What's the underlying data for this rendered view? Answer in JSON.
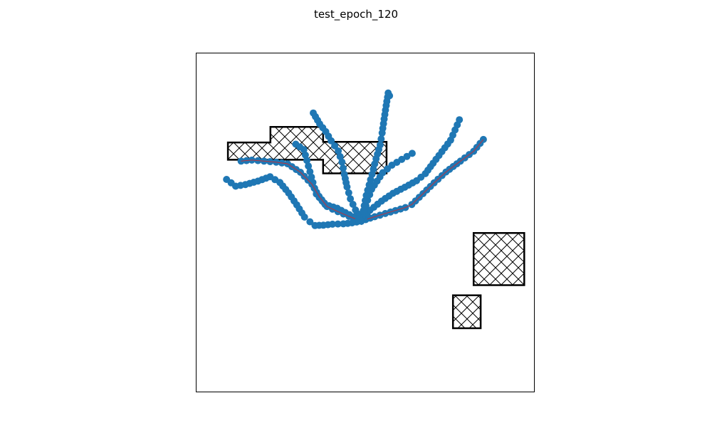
{
  "chart_data": {
    "type": "scatter",
    "title": "test_epoch_120",
    "xlabel": "",
    "ylabel": "",
    "xlim": [
      0,
      100
    ],
    "ylim": [
      0,
      100
    ],
    "grid": false,
    "ticks": false,
    "colors": {
      "path_point": "#1f77b4",
      "highlight_line": "#d62728",
      "obstacle_edge": "#000000",
      "obstacle_fill": "#ffffff"
    },
    "obstacles": [
      {
        "polygon": [
          [
            9.3,
            73.5
          ],
          [
            21.9,
            73.5
          ],
          [
            21.9,
            78.1
          ],
          [
            37.5,
            78.1
          ],
          [
            37.5,
            73.7
          ],
          [
            56.3,
            73.7
          ],
          [
            56.3,
            64.4
          ],
          [
            37.5,
            64.4
          ],
          [
            37.5,
            68.4
          ],
          [
            29.5,
            68.4
          ],
          [
            9.3,
            68.4
          ]
        ]
      },
      {
        "polygon": [
          [
            82.1,
            46.8
          ],
          [
            97.1,
            46.8
          ],
          [
            97.1,
            31.4
          ],
          [
            82.1,
            31.4
          ]
        ]
      },
      {
        "polygon": [
          [
            76.0,
            28.4
          ],
          [
            84.2,
            28.4
          ],
          [
            84.2,
            18.7
          ],
          [
            76.0,
            18.7
          ]
        ]
      }
    ],
    "series": [
      {
        "highlight": true,
        "x": [
          48.8,
          52.8,
          57.5,
          61.9,
          63.8,
          67.1,
          70.4,
          73.9,
          78.2,
          82.1,
          85.0
        ],
        "y": [
          50.3,
          51.6,
          53.0,
          54.3,
          55.2,
          58.4,
          61.6,
          64.8,
          68.0,
          70.9,
          74.4
        ]
      },
      {
        "highlight": false,
        "x": [
          48.8,
          51.4,
          54.8,
          58.2,
          61.7,
          65.2,
          67.8,
          70.1,
          72.7,
          75.3,
          77.9
        ],
        "y": [
          50.3,
          53.5,
          56.2,
          58.5,
          60.3,
          62.2,
          64.3,
          67.4,
          70.8,
          74.2,
          80.2
        ]
      },
      {
        "highlight": false,
        "x": [
          48.8,
          49.7,
          50.7,
          51.9,
          53.5,
          55.2,
          57.9,
          60.8,
          63.9
        ],
        "y": [
          50.3,
          53.3,
          56.5,
          59.7,
          62.1,
          64.6,
          66.8,
          68.5,
          70.3
        ]
      },
      {
        "highlight": false,
        "x": [
          48.8,
          50.3,
          52.0,
          53.2,
          54.4,
          55.0,
          55.6,
          56.2,
          56.8,
          57.2
        ],
        "y": [
          50.3,
          57.9,
          64.1,
          68.7,
          72.8,
          76.3,
          80.4,
          84.4,
          88.1,
          87.3
        ]
      },
      {
        "highlight": false,
        "x": [
          48.8,
          47.1,
          45.6,
          44.6,
          43.8,
          43.1,
          42.0,
          39.9,
          38.3,
          36.5,
          34.6
        ],
        "y": [
          50.3,
          53.6,
          56.9,
          60.4,
          64.1,
          67.7,
          71.0,
          74.0,
          76.7,
          79.0,
          82.2
        ]
      },
      {
        "highlight": false,
        "x": [
          48.8,
          45.3,
          41.7,
          38.1,
          35.5,
          34.5,
          33.6,
          32.7,
          31.8,
          29.4
        ],
        "y": [
          50.3,
          52.2,
          54.1,
          55.2,
          58.3,
          61.7,
          64.9,
          68.2,
          71.4,
          73.0
        ]
      },
      {
        "highlight": true,
        "x": [
          48.8,
          45.2,
          41.9,
          38.7,
          36.3,
          34.2,
          30.8,
          27.0,
          23.6,
          20.0,
          16.4,
          13.2
        ],
        "y": [
          50.3,
          51.7,
          53.1,
          54.6,
          57.6,
          61.2,
          64.7,
          67.2,
          67.7,
          68.0,
          68.3,
          68.0
        ]
      },
      {
        "highlight": false,
        "x": [
          48.8,
          46.1,
          43.5,
          40.3,
          37.6,
          35.1,
          33.6,
          32.0,
          29.7,
          27.3,
          24.7,
          21.8,
          18.2,
          14.5,
          11.6,
          8.9
        ],
        "y": [
          50.3,
          49.8,
          49.5,
          49.4,
          49.1,
          49.0,
          50.1,
          51.5,
          55.1,
          58.6,
          61.7,
          63.4,
          62.1,
          61.1,
          60.6,
          62.6
        ]
      }
    ]
  }
}
